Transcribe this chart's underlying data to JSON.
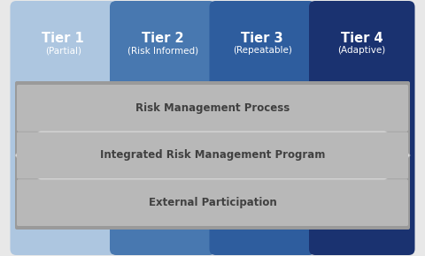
{
  "tiers": [
    {
      "label": "Tier 1",
      "sublabel": "(Partial)",
      "color": "#adc6e0"
    },
    {
      "label": "Tier 2",
      "sublabel": "(Risk Informed)",
      "color": "#4878b0"
    },
    {
      "label": "Tier 3",
      "sublabel": "(Repeatable)",
      "color": "#2e5d9e"
    },
    {
      "label": "Tier 4",
      "sublabel": "(Adaptive)",
      "color": "#1a3270"
    }
  ],
  "rows": [
    "Risk Management Process",
    "Integrated Risk Management Program",
    "External Participation"
  ],
  "bg_color": "#e8e8e8",
  "outer_band_color": "#808080",
  "inner_band_color": "#9a9a9a",
  "stripe_color": "#b8b8b8",
  "arrow_color": "#e0e0e0",
  "arrow_outline": "#c0c0c0",
  "text_color": "#ffffff",
  "row_text_color": "#404040",
  "label_fontsize": 10.5,
  "sublabel_fontsize": 7.5,
  "row_fontsize": 8.5
}
